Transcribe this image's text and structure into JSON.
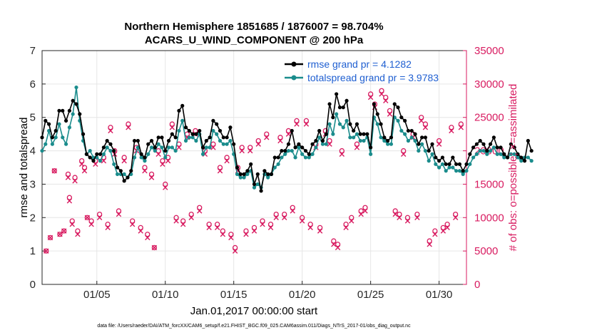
{
  "chart_data": {
    "type": "line",
    "title_line1": "Northern Hemisphere 1851685 / 1876007 = 98.704%",
    "title_line2": "ACARS_U_WIND_COMPONENT @ 200 hPa",
    "xlabel": "Jan.01,2017 00:00:00 start",
    "ylabel_left": "rmse and totalspread",
    "ylabel_right": "# of obs: o=possible; ×=assimilated",
    "footnote": "data file: /Users/raeder/DAI/ATM_forcXX/CAM6_setup/f.e21.FHIST_BGC.f09_025.CAM6assim.011/Diags_NTrS_2017-01/obs_diag_output.nc",
    "x_range_days": [
      1,
      32
    ],
    "x_ticks": [
      {
        "day": 5,
        "label": "01/05"
      },
      {
        "day": 10,
        "label": "01/10"
      },
      {
        "day": 15,
        "label": "01/15"
      },
      {
        "day": 20,
        "label": "01/20"
      },
      {
        "day": 25,
        "label": "01/25"
      },
      {
        "day": 30,
        "label": "01/30"
      }
    ],
    "ylim_left": [
      0,
      7
    ],
    "yticks_left": [
      "0",
      "1",
      "2",
      "3",
      "4",
      "5",
      "6",
      "7"
    ],
    "ylim_right": [
      0,
      35000
    ],
    "yticks_right": [
      "0",
      "5000",
      "10000",
      "15000",
      "20000",
      "25000",
      "30000",
      "35000"
    ],
    "legend": [
      {
        "label": "rmse grand pr = 4.1282",
        "color": "#000000"
      },
      {
        "label": "totalspread grand pr = 3.9783",
        "color": "#1a8c8c"
      }
    ],
    "colors": {
      "rmse": "#000000",
      "spread": "#1a8c8c",
      "obs": "#d81b60",
      "right_axis": "#d81b60"
    },
    "series": [
      {
        "name": "rmse",
        "start_day": 1,
        "step_days": 0.25,
        "values": [
          4.4,
          4.9,
          4.8,
          4.4,
          4.6,
          5.2,
          5.2,
          4.9,
          5.2,
          5.5,
          5.4,
          5.1,
          4.5,
          3.9,
          3.8,
          3.7,
          3.9,
          3.9,
          4.1,
          4.3,
          4.2,
          4.0,
          3.5,
          3.4,
          3.1,
          3.2,
          3.4,
          4.3,
          4.3,
          3.9,
          3.8,
          4.2,
          4.3,
          4.1,
          4.4,
          4.4,
          4.0,
          4.3,
          4.5,
          4.4,
          5.2,
          5.35,
          4.7,
          4.6,
          4.5,
          4.5,
          4.6,
          4.1,
          4.3,
          4.4,
          4.9,
          4.8,
          4.6,
          4.4,
          4.4,
          4.7,
          4.2,
          3.5,
          3.3,
          3.3,
          3.4,
          3.6,
          3.0,
          3.3,
          2.8,
          3.4,
          3.3,
          3.3,
          3.8,
          3.8,
          4.0,
          4.0,
          4.2,
          4.6,
          4.1,
          4.2,
          4.1,
          4.0,
          3.9,
          4.2,
          4.3,
          4.6,
          4.3,
          4.5,
          5.4,
          5.0,
          5.7,
          5.3,
          5.3,
          5.5,
          4.8,
          4.6,
          4.8,
          4.5,
          4.5,
          4.5,
          4.1,
          5.4,
          5.1,
          4.8,
          4.4,
          4.3,
          4.4,
          5.4,
          5.3,
          5.0,
          4.9,
          4.6,
          4.6,
          4.5,
          4.2,
          4.4,
          4.4,
          4.0,
          4.2,
          3.8,
          3.7,
          3.8,
          3.6,
          3.6,
          3.8,
          3.6,
          3.6,
          3.4,
          3.6,
          3.9,
          4.1,
          4.2,
          4.3,
          4.2,
          4.0,
          4.2,
          4.4,
          4.1,
          4.1,
          3.9,
          3.8,
          4.2,
          4.1,
          3.9,
          3.8,
          3.7,
          4.3,
          4.0
        ]
      },
      {
        "name": "totalspread",
        "start_day": 1,
        "step_days": 0.25,
        "values": [
          4.0,
          4.2,
          4.6,
          4.2,
          4.4,
          4.8,
          4.4,
          4.2,
          4.7,
          5.1,
          5.9,
          4.9,
          4.3,
          3.9,
          4.0,
          3.8,
          3.8,
          3.7,
          3.9,
          4.1,
          4.0,
          3.6,
          3.3,
          3.3,
          3.3,
          3.2,
          3.3,
          3.8,
          4.1,
          3.8,
          3.7,
          3.9,
          4.1,
          4.0,
          4.2,
          4.1,
          3.8,
          4.1,
          4.1,
          4.0,
          4.6,
          4.9,
          4.3,
          4.4,
          4.4,
          4.3,
          4.5,
          3.9,
          4.1,
          4.1,
          4.6,
          4.5,
          4.3,
          4.2,
          4.2,
          4.3,
          3.9,
          3.3,
          3.2,
          3.2,
          3.3,
          3.4,
          2.9,
          3.0,
          2.9,
          3.3,
          3.2,
          3.3,
          3.5,
          3.6,
          3.8,
          3.9,
          4.0,
          4.0,
          3.8,
          4.1,
          3.9,
          3.8,
          3.8,
          3.9,
          4.1,
          4.4,
          4.2,
          4.2,
          4.8,
          4.5,
          5.1,
          4.8,
          4.7,
          4.9,
          4.4,
          4.4,
          4.5,
          4.3,
          4.3,
          4.4,
          3.9,
          5.0,
          4.8,
          4.4,
          4.3,
          4.2,
          4.2,
          5.0,
          4.9,
          4.6,
          4.5,
          4.3,
          4.4,
          4.3,
          4.0,
          4.2,
          4.0,
          3.7,
          3.9,
          3.6,
          3.5,
          3.6,
          3.4,
          3.5,
          3.5,
          3.4,
          3.4,
          3.3,
          3.4,
          3.6,
          3.8,
          3.9,
          4.0,
          4.0,
          3.9,
          4.0,
          4.1,
          3.9,
          3.9,
          3.8,
          3.8,
          3.9,
          3.9,
          3.8,
          3.7,
          3.8,
          3.8,
          3.7
        ]
      },
      {
        "name": "obs_possible",
        "axis": "right",
        "marker": "o",
        "points": [
          [
            1.3,
            5000
          ],
          [
            1.6,
            7000
          ],
          [
            1.9,
            17000
          ],
          [
            2.3,
            7500
          ],
          [
            2.6,
            8000
          ],
          [
            2.9,
            16500
          ],
          [
            3.0,
            13000
          ],
          [
            3.2,
            9500
          ],
          [
            3.4,
            16000
          ],
          [
            3.6,
            8000
          ],
          [
            3.9,
            18500
          ],
          [
            4.1,
            17500
          ],
          [
            4.3,
            10000
          ],
          [
            4.6,
            9500
          ],
          [
            4.9,
            18500
          ],
          [
            5.2,
            10500
          ],
          [
            5.5,
            19000
          ],
          [
            5.8,
            9000
          ],
          [
            6.0,
            23500
          ],
          [
            6.3,
            20000
          ],
          [
            6.6,
            11000
          ],
          [
            7.0,
            19000
          ],
          [
            7.3,
            24000
          ],
          [
            7.6,
            9500
          ],
          [
            7.9,
            20500
          ],
          [
            8.2,
            8500
          ],
          [
            8.5,
            17500
          ],
          [
            8.7,
            7500
          ],
          [
            9.0,
            16500
          ],
          [
            9.2,
            5500
          ],
          [
            9.5,
            20000
          ],
          [
            9.8,
            18500
          ],
          [
            10.0,
            15000
          ],
          [
            10.2,
            19000
          ],
          [
            10.5,
            24000
          ],
          [
            10.8,
            10000
          ],
          [
            11.0,
            21000
          ],
          [
            11.3,
            9500
          ],
          [
            11.6,
            22500
          ],
          [
            11.9,
            10500
          ],
          [
            12.2,
            23000
          ],
          [
            12.5,
            11500
          ],
          [
            12.9,
            20000
          ],
          [
            13.2,
            9000
          ],
          [
            13.5,
            21000
          ],
          [
            13.8,
            9000
          ],
          [
            14.0,
            17500
          ],
          [
            14.2,
            8000
          ],
          [
            14.5,
            19000
          ],
          [
            14.8,
            7500
          ],
          [
            15.1,
            5500
          ],
          [
            15.3,
            17500
          ],
          [
            15.6,
            20500
          ],
          [
            15.9,
            8000
          ],
          [
            16.2,
            20500
          ],
          [
            16.5,
            8500
          ],
          [
            16.8,
            21500
          ],
          [
            17.1,
            9500
          ],
          [
            17.4,
            22500
          ],
          [
            17.7,
            9000
          ],
          [
            18.1,
            10500
          ],
          [
            18.4,
            22000
          ],
          [
            18.7,
            10500
          ],
          [
            19.0,
            23000
          ],
          [
            19.3,
            11500
          ],
          [
            19.6,
            24500
          ],
          [
            20.0,
            10000
          ],
          [
            20.3,
            24500
          ],
          [
            20.6,
            9000
          ],
          [
            21.0,
            21000
          ],
          [
            21.3,
            8500
          ],
          [
            21.7,
            23000
          ],
          [
            22.0,
            21500
          ],
          [
            22.3,
            6500
          ],
          [
            22.6,
            6000
          ],
          [
            22.9,
            20000
          ],
          [
            23.2,
            9000
          ],
          [
            23.6,
            10000
          ],
          [
            24.0,
            21000
          ],
          [
            24.3,
            11000
          ],
          [
            24.6,
            11500
          ],
          [
            25.0,
            28500
          ],
          [
            25.3,
            27000
          ],
          [
            25.8,
            29000
          ],
          [
            26.1,
            28000
          ],
          [
            26.4,
            26000
          ],
          [
            26.8,
            11000
          ],
          [
            27.1,
            10500
          ],
          [
            27.4,
            20000
          ],
          [
            27.7,
            10000
          ],
          [
            28.1,
            22500
          ],
          [
            28.4,
            10500
          ],
          [
            28.7,
            25000
          ],
          [
            29.0,
            24000
          ],
          [
            29.3,
            6500
          ],
          [
            29.7,
            8000
          ],
          [
            30.0,
            21500
          ],
          [
            30.3,
            8500
          ],
          [
            30.6,
            9000
          ],
          [
            30.9,
            23500
          ],
          [
            31.2,
            10500
          ],
          [
            31.6,
            24000
          ]
        ]
      },
      {
        "name": "obs_assimilated",
        "axis": "right",
        "marker": "x",
        "points": [
          [
            1.3,
            5000
          ],
          [
            1.6,
            7000
          ],
          [
            1.9,
            17000
          ],
          [
            2.3,
            7500
          ],
          [
            2.6,
            8000
          ],
          [
            2.9,
            16000
          ],
          [
            3.0,
            12500
          ],
          [
            3.2,
            9000
          ],
          [
            3.4,
            15500
          ],
          [
            3.6,
            7500
          ],
          [
            3.9,
            18000
          ],
          [
            4.1,
            17000
          ],
          [
            4.3,
            10000
          ],
          [
            4.6,
            9000
          ],
          [
            4.9,
            18000
          ],
          [
            5.2,
            10000
          ],
          [
            5.5,
            18500
          ],
          [
            5.8,
            8500
          ],
          [
            6.0,
            23000
          ],
          [
            6.3,
            19500
          ],
          [
            6.6,
            10500
          ],
          [
            7.0,
            18500
          ],
          [
            7.3,
            23500
          ],
          [
            7.6,
            9000
          ],
          [
            7.9,
            20000
          ],
          [
            8.2,
            8000
          ],
          [
            8.5,
            17000
          ],
          [
            8.7,
            7000
          ],
          [
            9.0,
            16000
          ],
          [
            9.2,
            5500
          ],
          [
            9.5,
            19500
          ],
          [
            9.8,
            18000
          ],
          [
            10.0,
            14500
          ],
          [
            10.2,
            18500
          ],
          [
            10.5,
            23500
          ],
          [
            10.8,
            9500
          ],
          [
            11.0,
            20500
          ],
          [
            11.3,
            9000
          ],
          [
            11.6,
            22000
          ],
          [
            11.9,
            10000
          ],
          [
            12.2,
            22500
          ],
          [
            12.5,
            11000
          ],
          [
            12.9,
            19500
          ],
          [
            13.2,
            8500
          ],
          [
            13.5,
            20500
          ],
          [
            13.8,
            8500
          ],
          [
            14.0,
            17000
          ],
          [
            14.2,
            7500
          ],
          [
            14.5,
            18500
          ],
          [
            14.8,
            7000
          ],
          [
            15.1,
            5000
          ],
          [
            15.3,
            17000
          ],
          [
            15.6,
            20000
          ],
          [
            15.9,
            7500
          ],
          [
            16.2,
            20000
          ],
          [
            16.5,
            8000
          ],
          [
            16.8,
            21000
          ],
          [
            17.1,
            9000
          ],
          [
            17.4,
            22000
          ],
          [
            17.7,
            8500
          ],
          [
            18.1,
            10000
          ],
          [
            18.4,
            21500
          ],
          [
            18.7,
            10000
          ],
          [
            19.0,
            22500
          ],
          [
            19.3,
            11000
          ],
          [
            19.6,
            24000
          ],
          [
            20.0,
            9500
          ],
          [
            20.3,
            24000
          ],
          [
            20.6,
            8500
          ],
          [
            21.0,
            20500
          ],
          [
            21.3,
            8000
          ],
          [
            21.7,
            22500
          ],
          [
            22.0,
            21000
          ],
          [
            22.3,
            6000
          ],
          [
            22.6,
            5500
          ],
          [
            22.9,
            19500
          ],
          [
            23.2,
            8500
          ],
          [
            23.6,
            9500
          ],
          [
            24.0,
            20500
          ],
          [
            24.3,
            10500
          ],
          [
            24.6,
            11000
          ],
          [
            25.0,
            28000
          ],
          [
            25.3,
            26500
          ],
          [
            25.8,
            28500
          ],
          [
            26.1,
            27500
          ],
          [
            26.4,
            25500
          ],
          [
            26.8,
            10500
          ],
          [
            27.1,
            10000
          ],
          [
            27.4,
            19500
          ],
          [
            27.7,
            9500
          ],
          [
            28.1,
            22000
          ],
          [
            28.4,
            10000
          ],
          [
            28.7,
            24500
          ],
          [
            29.0,
            23500
          ],
          [
            29.3,
            6000
          ],
          [
            29.7,
            7500
          ],
          [
            30.0,
            21000
          ],
          [
            30.3,
            8000
          ],
          [
            30.6,
            8500
          ],
          [
            30.9,
            23000
          ],
          [
            31.2,
            10000
          ],
          [
            31.6,
            23500
          ]
        ]
      }
    ]
  }
}
